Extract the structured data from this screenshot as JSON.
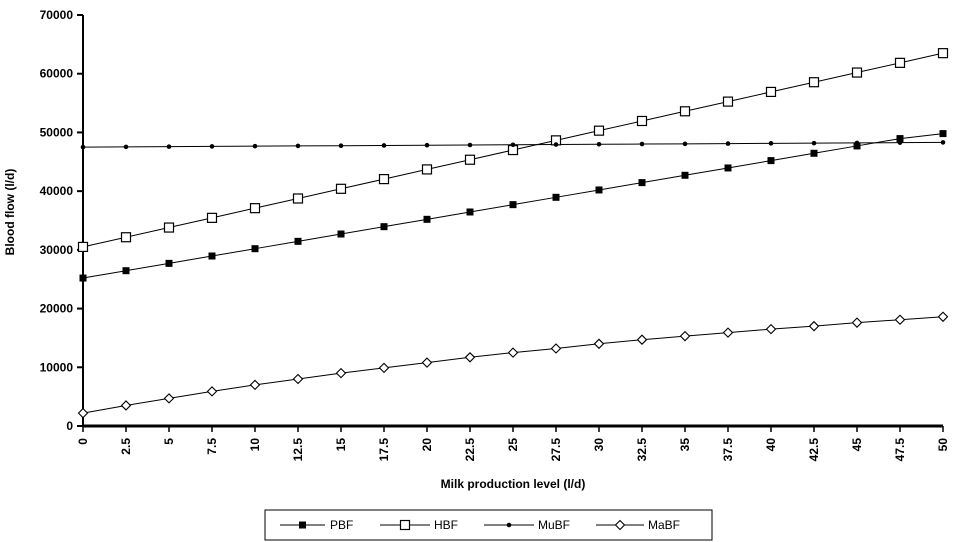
{
  "chart_data": {
    "type": "line",
    "title": "",
    "xlabel": "Milk production level (l/d)",
    "ylabel": "Blood flow (l/d)",
    "ylim": [
      0,
      70000
    ],
    "xlim": [
      0,
      50
    ],
    "y_ticks": [
      "0",
      "10000",
      "20000",
      "30000",
      "40000",
      "50000",
      "60000",
      "70000"
    ],
    "x": [
      0,
      2.5,
      5,
      7.5,
      10,
      12.5,
      15,
      17.5,
      20,
      22.5,
      25,
      27.5,
      30,
      32.5,
      35,
      37.5,
      40,
      42.5,
      45,
      47.5,
      50
    ],
    "x_tick_labels": [
      "0",
      "2.5",
      "5",
      "7.5",
      "10",
      "12.5",
      "15",
      "17.5",
      "20",
      "22.5",
      "25",
      "27.5",
      "30",
      "32.5",
      "35",
      "37.5",
      "40",
      "42.5",
      "45",
      "47.5",
      "50"
    ],
    "grid": false,
    "legend_position": "bottom",
    "series": [
      {
        "name": "PBF",
        "marker": "filled-square",
        "color": "#000000",
        "values": [
          25200,
          26450,
          27700,
          28950,
          30200,
          31450,
          32700,
          33950,
          35200,
          36450,
          37700,
          38950,
          40200,
          41450,
          42700,
          43950,
          45200,
          46450,
          47700,
          48950,
          49800
        ]
      },
      {
        "name": "HBF",
        "marker": "open-square",
        "color": "#000000",
        "values": [
          30500,
          32150,
          33800,
          35450,
          37100,
          38750,
          40400,
          42050,
          43700,
          45350,
          47000,
          48650,
          50300,
          51950,
          53600,
          55250,
          56900,
          58550,
          60200,
          61850,
          63500
        ]
      },
      {
        "name": "MuBF",
        "marker": "small-dot",
        "color": "#000000",
        "values": [
          47500,
          47540,
          47580,
          47620,
          47660,
          47700,
          47740,
          47780,
          47820,
          47860,
          47900,
          47940,
          47980,
          48020,
          48060,
          48100,
          48140,
          48180,
          48220,
          48260,
          48300
        ]
      },
      {
        "name": "MaBF",
        "marker": "open-diamond",
        "color": "#000000",
        "values": [
          2200,
          3500,
          4700,
          5900,
          7000,
          8000,
          9000,
          9900,
          10800,
          11700,
          12500,
          13200,
          14000,
          14700,
          15300,
          15900,
          16500,
          17000,
          17600,
          18100,
          18600
        ]
      }
    ]
  }
}
